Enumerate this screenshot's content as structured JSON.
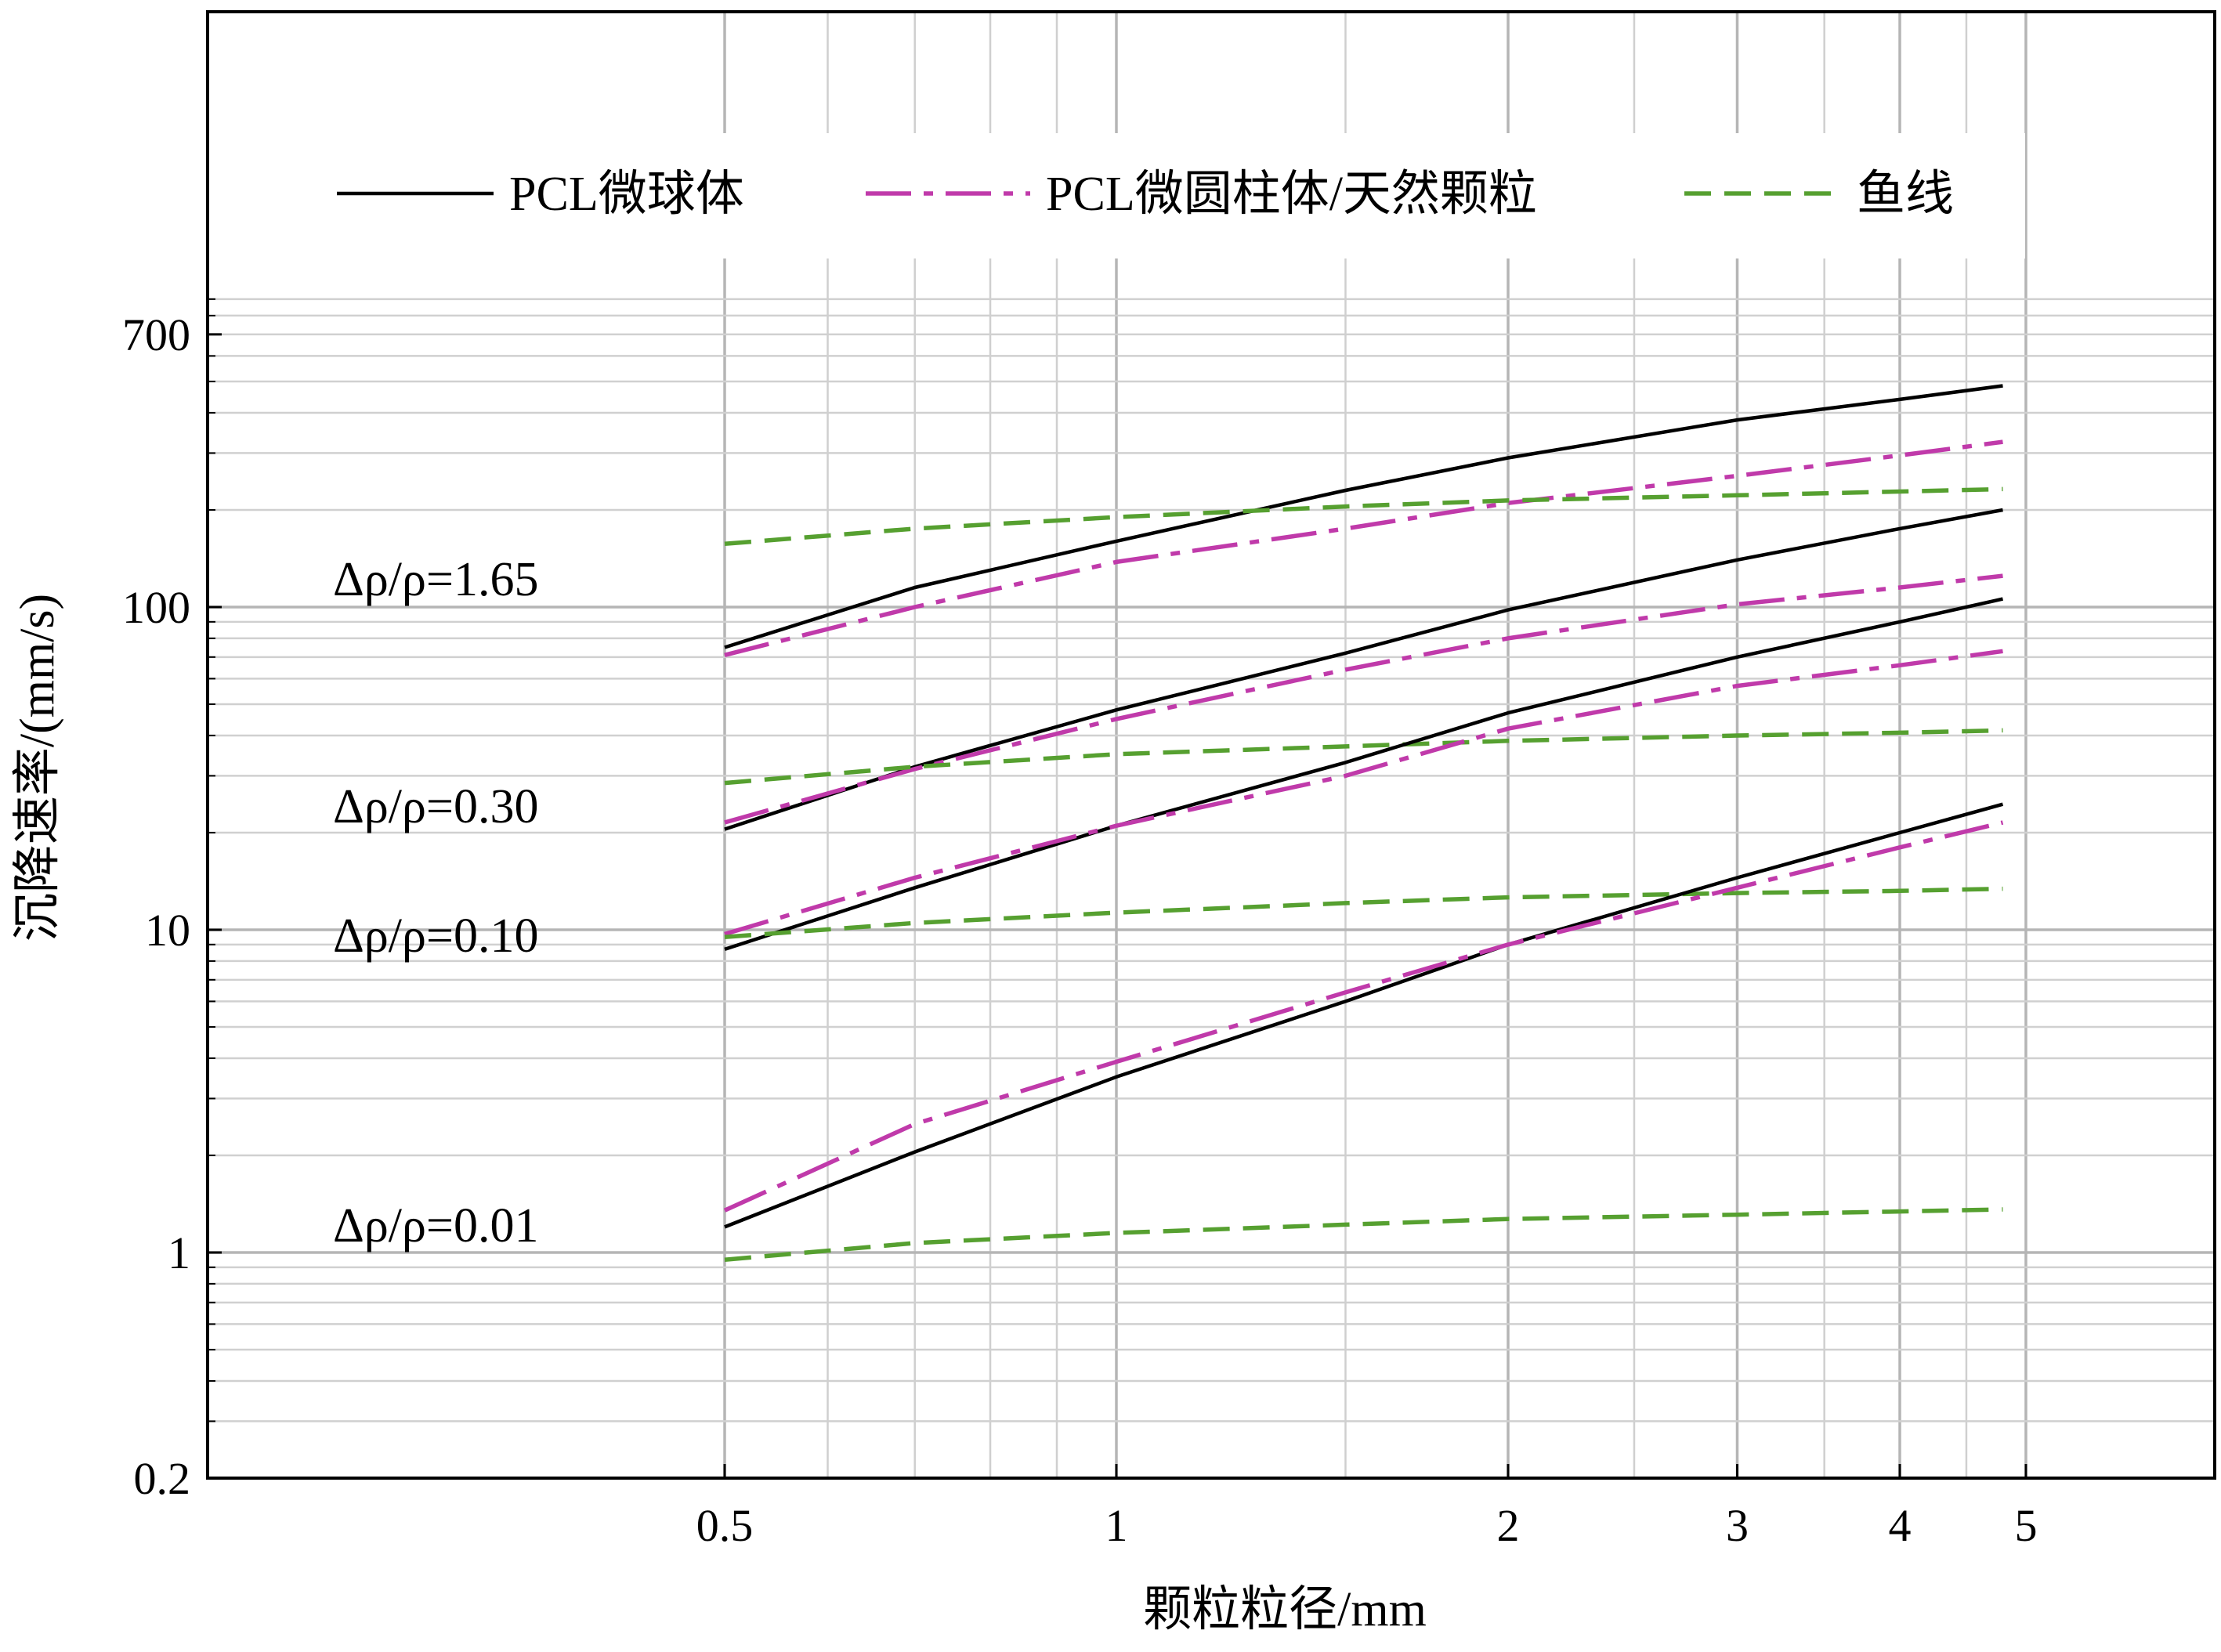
{
  "chart_data": {
    "type": "line",
    "title": "",
    "xlabel": "颗粒粒径/mm",
    "ylabel": "沉降速率/(mm/s)",
    "x_scale": "log",
    "y_scale": "log",
    "xlim": [
      0.19,
      5.8
    ],
    "ylim": [
      0.2,
      5000
    ],
    "x_ticks": [
      0.5,
      1,
      2,
      3,
      4,
      5
    ],
    "x_tick_labels": [
      "0.5",
      "1",
      "2",
      "3",
      "4",
      "5"
    ],
    "y_ticks": [
      0.2,
      1,
      10,
      100,
      700
    ],
    "y_tick_labels": [
      "0.2",
      "1",
      "10",
      "100",
      "700"
    ],
    "grid": true,
    "legend_position": "top",
    "legend": [
      {
        "label": "PCL微球体",
        "color": "#000000",
        "dash": "solid"
      },
      {
        "label": "PCL微圆柱体/天然颗粒",
        "color": "#c03aaa",
        "dash": "dashdot"
      },
      {
        "label": "鱼线",
        "color": "#56a030",
        "dash": "dashed"
      }
    ],
    "annotations": [
      {
        "text": "Δρ/ρ=1.65",
        "y": 100
      },
      {
        "text": "Δρ/ρ=0.30",
        "y": 21
      },
      {
        "text": "Δρ/ρ=0.10",
        "y": 9
      },
      {
        "text": "Δρ/ρ=0.01",
        "y": 1.05
      }
    ],
    "series": [
      {
        "group": "Δρ/ρ=1.65",
        "kind": "PCL微球体",
        "style": 0,
        "x": [
          0.5,
          0.7,
          1,
          1.5,
          2,
          3,
          4,
          4.8
        ],
        "y": [
          75,
          115,
          160,
          230,
          290,
          380,
          440,
          485
        ]
      },
      {
        "group": "Δρ/ρ=1.65",
        "kind": "PCL微圆柱体/天然颗粒",
        "style": 1,
        "x": [
          0.5,
          0.7,
          1,
          1.5,
          2,
          3,
          4,
          4.8
        ],
        "y": [
          71,
          100,
          138,
          175,
          210,
          255,
          295,
          325
        ]
      },
      {
        "group": "Δρ/ρ=1.65",
        "kind": "鱼线",
        "style": 2,
        "x": [
          0.5,
          0.7,
          1,
          1.5,
          2,
          3,
          4,
          4.8
        ],
        "y": [
          157,
          175,
          190,
          205,
          214,
          222,
          228,
          232
        ]
      },
      {
        "group": "Δρ/ρ=0.30",
        "kind": "PCL微球体",
        "style": 0,
        "x": [
          0.5,
          0.7,
          1,
          1.5,
          2,
          3,
          4,
          4.8
        ],
        "y": [
          20.5,
          32,
          48,
          72,
          98,
          140,
          175,
          200
        ]
      },
      {
        "group": "Δρ/ρ=0.30",
        "kind": "PCL微圆柱体/天然颗粒",
        "style": 1,
        "x": [
          0.5,
          0.7,
          1,
          1.5,
          2,
          3,
          4,
          4.8
        ],
        "y": [
          21.5,
          31.5,
          45,
          64,
          80,
          102,
          115,
          125
        ]
      },
      {
        "group": "Δρ/ρ=0.30",
        "kind": "鱼线",
        "style": 2,
        "x": [
          0.5,
          0.7,
          1,
          1.5,
          2,
          3,
          4,
          4.8
        ],
        "y": [
          28.5,
          32,
          35,
          37,
          38.5,
          40,
          40.8,
          41.5
        ]
      },
      {
        "group": "Δρ/ρ=0.10",
        "kind": "PCL微球体",
        "style": 0,
        "x": [
          0.5,
          0.7,
          1,
          1.5,
          2,
          3,
          4,
          4.8
        ],
        "y": [
          8.7,
          13.5,
          21,
          33,
          47,
          70,
          90,
          106
        ]
      },
      {
        "group": "Δρ/ρ=0.10",
        "kind": "PCL微圆柱体/天然颗粒",
        "style": 1,
        "x": [
          0.5,
          0.7,
          1,
          1.5,
          2,
          3,
          4,
          4.8
        ],
        "y": [
          9.7,
          14.5,
          21,
          30,
          42,
          57,
          66,
          73
        ]
      },
      {
        "group": "Δρ/ρ=0.10",
        "kind": "鱼线",
        "style": 2,
        "x": [
          0.5,
          0.7,
          1,
          1.5,
          2,
          3,
          4,
          4.8
        ],
        "y": [
          9.5,
          10.5,
          11.3,
          12.1,
          12.6,
          13,
          13.2,
          13.4
        ]
      },
      {
        "group": "Δρ/ρ=0.01",
        "kind": "PCL微球体",
        "style": 0,
        "x": [
          0.5,
          0.7,
          1,
          1.5,
          2,
          3,
          4,
          4.8
        ],
        "y": [
          1.2,
          2.05,
          3.5,
          6.0,
          9.0,
          14.5,
          20,
          24.5
        ]
      },
      {
        "group": "Δρ/ρ=0.01",
        "kind": "PCL微圆柱体/天然颗粒",
        "style": 1,
        "x": [
          0.5,
          0.7,
          1,
          1.5,
          2,
          3,
          4,
          4.8
        ],
        "y": [
          1.35,
          2.5,
          3.9,
          6.4,
          9.0,
          13.5,
          18,
          21.5
        ]
      },
      {
        "group": "Δρ/ρ=0.01",
        "kind": "鱼线",
        "style": 2,
        "x": [
          0.5,
          0.7,
          1,
          1.5,
          2,
          3,
          4,
          4.8
        ],
        "y": [
          0.95,
          1.07,
          1.15,
          1.22,
          1.27,
          1.31,
          1.34,
          1.36
        ]
      }
    ]
  }
}
